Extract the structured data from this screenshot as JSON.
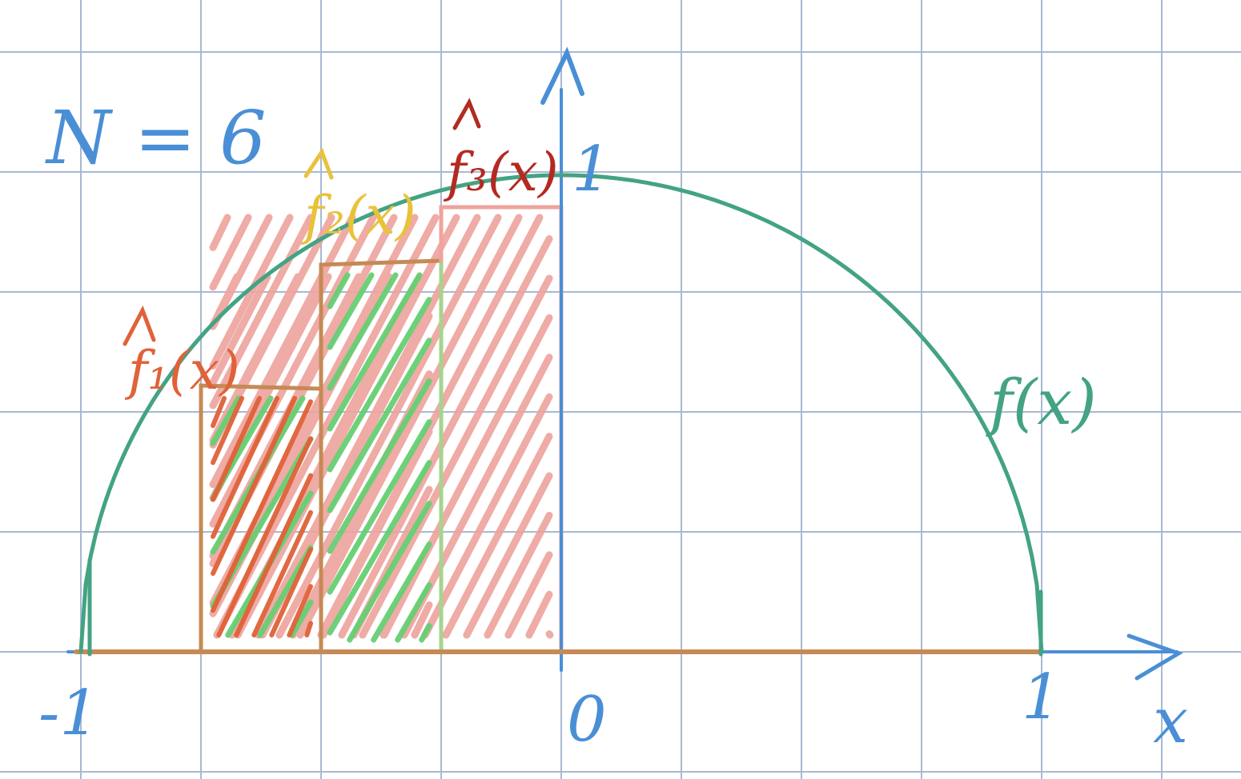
{
  "annotation": {
    "n_label": "N = 6"
  },
  "axes": {
    "x_label": "x",
    "tick_minus_one": "-1",
    "tick_zero": "0",
    "tick_one": "1",
    "y_tick_one": "1"
  },
  "function_label": "f(x)",
  "approximations": [
    {
      "label": "f₁(x)",
      "color": "#e06238"
    },
    {
      "label": "f₂(x)",
      "color": "#e9c23a"
    },
    {
      "label": "f₃(x)",
      "color": "#b32a21"
    }
  ],
  "colors": {
    "grid": "#a8b8d4",
    "axis": "#4a8fd6",
    "curve": "#43a383",
    "step_outline": "#c58a55",
    "hatch_orange": "#e06238",
    "hatch_green": "#66cf73",
    "hatch_pink": "#eea39d"
  }
}
